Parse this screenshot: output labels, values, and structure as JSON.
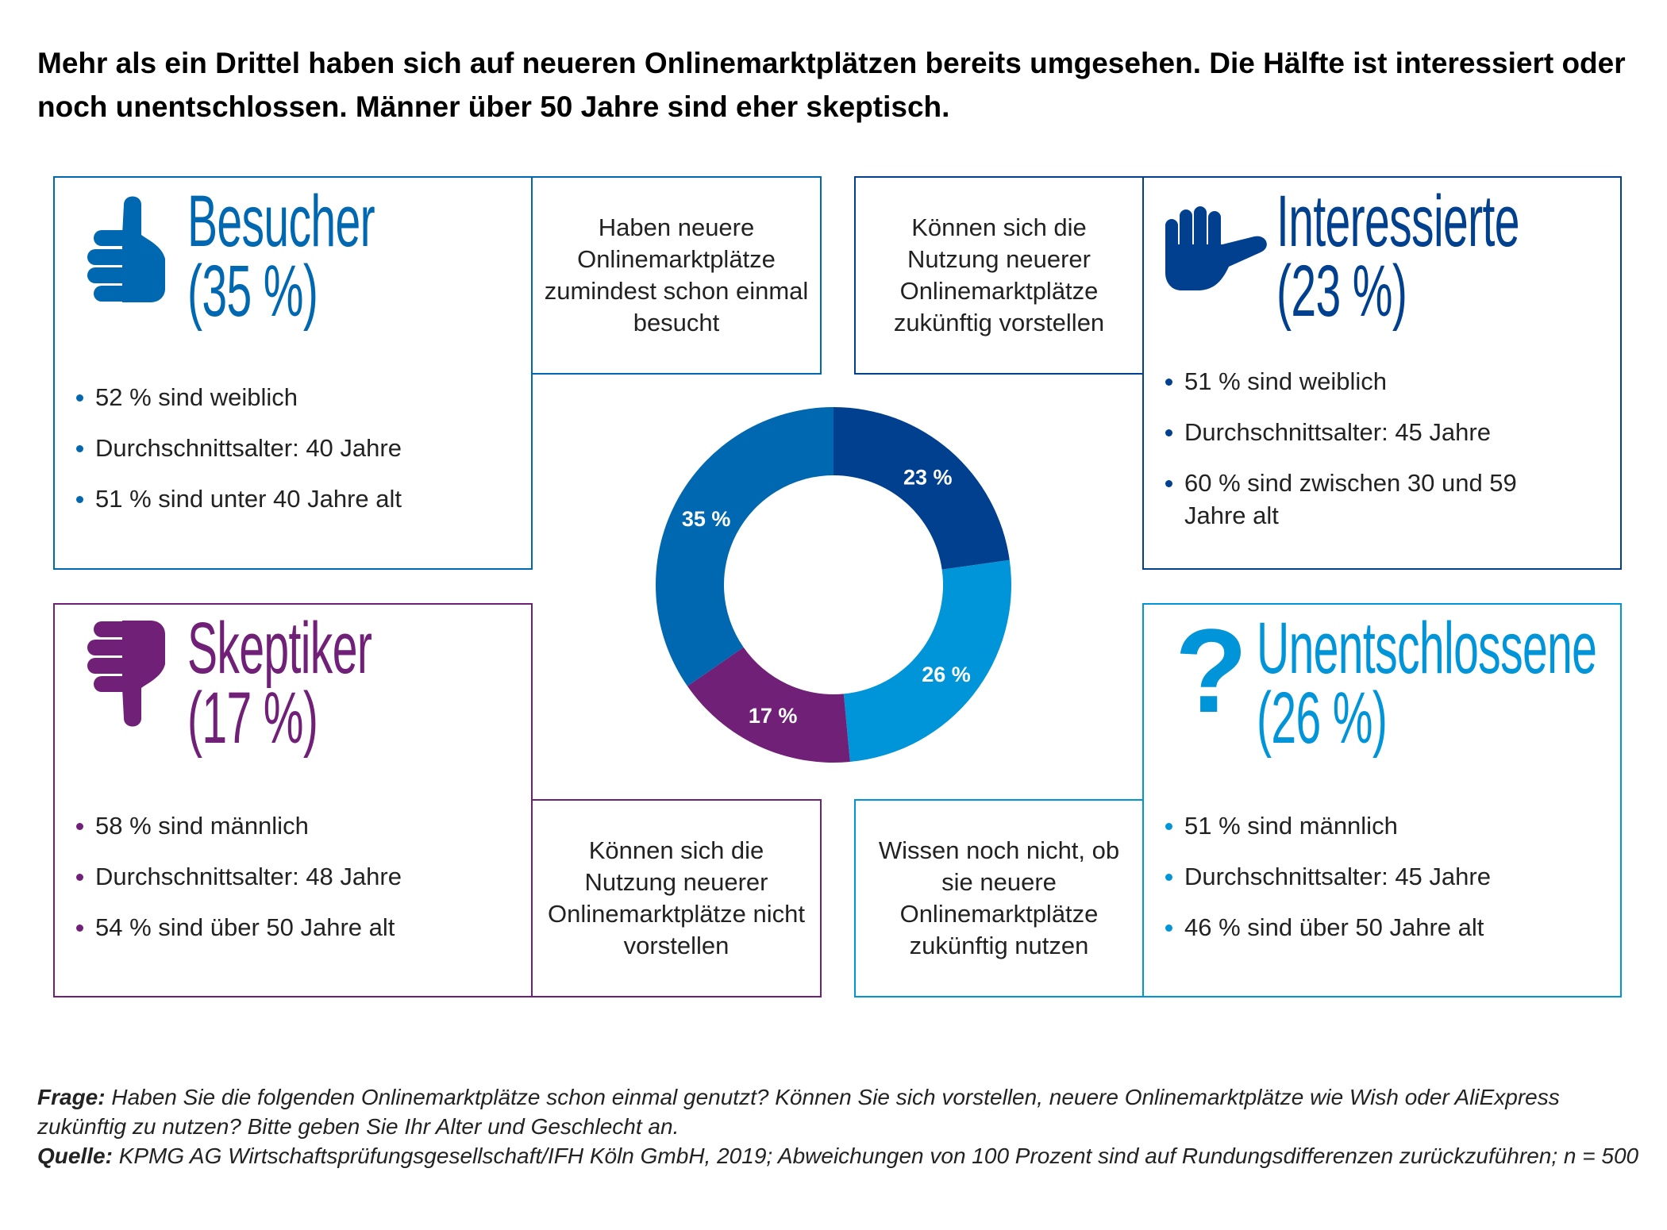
{
  "title": "Mehr als ein Drittel haben sich auf neueren Onlinemarktplätzen bereits umgesehen. Die Hälfte ist interessiert oder noch unentschlossen. Männer über 50 Jahre sind eher skeptisch.",
  "colors": {
    "besucher": "#0067b1",
    "interessierte": "#00408f",
    "skeptiker": "#712078",
    "unentschlossene": "#0094d8"
  },
  "groups": {
    "besucher": {
      "icon": "thumbs-up-icon",
      "name": "Besucher",
      "pct": "(35 %)",
      "desc": "Haben neuere Onlinemarktplätze zumindest schon einmal besucht",
      "bullets": [
        "52 % sind weiblich",
        "Durchschnittsalter: 40 Jahre",
        "51 % sind unter 40 Jahre alt"
      ]
    },
    "interessierte": {
      "icon": "pointing-hand-icon",
      "name": "Interessierte",
      "pct": "(23 %)",
      "desc": "Können sich die Nutzung neuerer Onlinemarktplätze zukünftig vorstellen",
      "bullets": [
        "51 % sind weiblich",
        "Durchschnittsalter: 45 Jahre",
        "60 % sind zwischen 30 und 59 Jahre alt"
      ]
    },
    "skeptiker": {
      "icon": "thumbs-down-icon",
      "name": "Skeptiker",
      "pct": "(17 %)",
      "desc": "Können sich die Nutzung neuerer Onlinemarktplätze nicht vorstellen",
      "bullets": [
        "58 % sind männlich",
        "Durchschnittsalter: 48 Jahre",
        "54 % sind über 50 Jahre alt"
      ]
    },
    "unentschlossene": {
      "icon": "question-mark-icon",
      "name": "Unentschlossene",
      "pct": "(26 %)",
      "desc": "Wissen noch nicht, ob sie neuere Onlinemarktplätze zukünftig nutzen",
      "bullets": [
        "51 % sind männlich",
        "Durchschnittsalter: 45 Jahre",
        "46 % sind über 50 Jahre alt"
      ]
    }
  },
  "chart_data": {
    "type": "pie",
    "variant": "donut",
    "start": "top, clockwise",
    "categories": [
      "Interessierte",
      "Unentschlossene",
      "Skeptiker",
      "Besucher"
    ],
    "values": [
      23,
      26,
      17,
      35
    ],
    "labels": [
      "23 %",
      "26 %",
      "17 %",
      "35 %"
    ],
    "colors": [
      "#00408f",
      "#0094d8",
      "#712078",
      "#0067b1"
    ]
  },
  "footer": {
    "frage_label": "Frage:",
    "frage": " Haben Sie die folgenden Onlinemarktplätze schon einmal genutzt? Können Sie sich vorstellen, neuere Onlinemarktplätze wie Wish oder AliExpress zukünftig zu nutzen? Bitte geben Sie Ihr Alter und Geschlecht an.",
    "quelle_label": "Quelle:",
    "quelle": " KPMG AG Wirtschaftsprüfungsgesellschaft/IFH Köln GmbH, 2019; Abweichungen von 100 Prozent sind auf Rundungsdifferenzen zurückzuführen; n = 500"
  }
}
